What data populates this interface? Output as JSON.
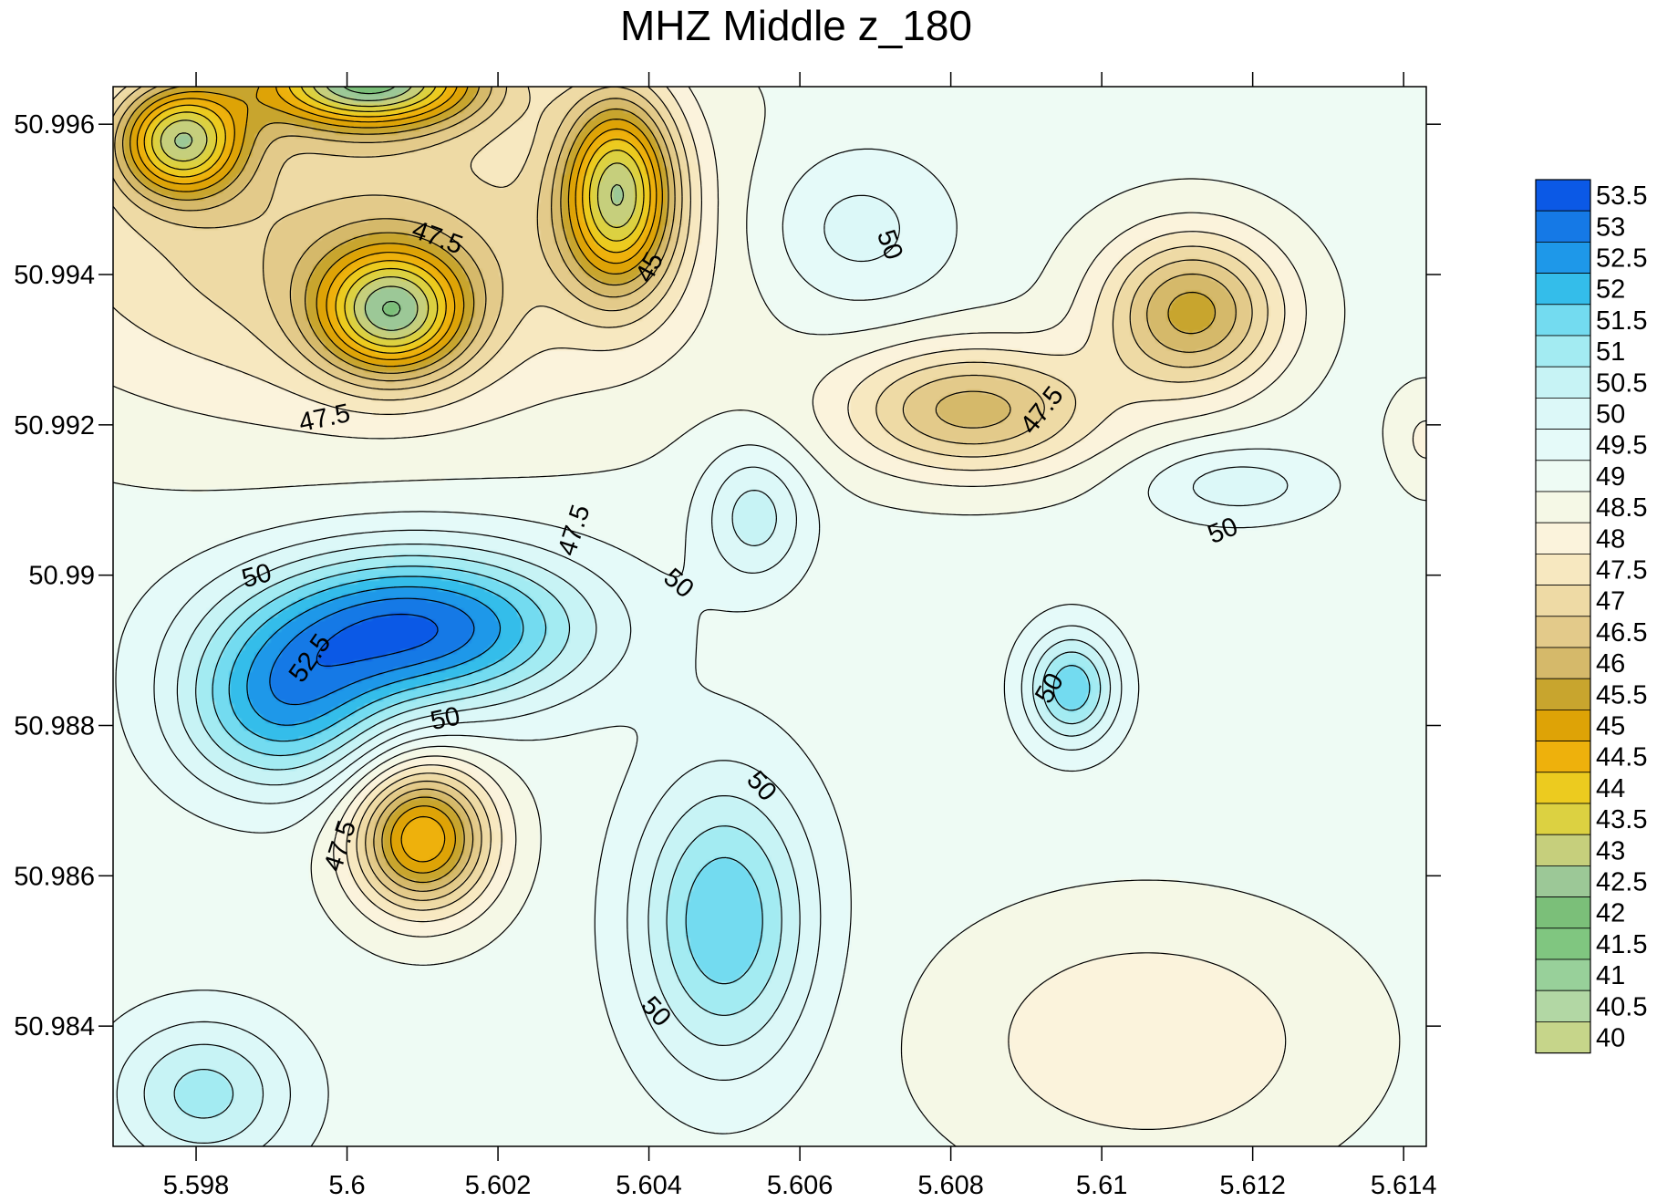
{
  "chart_data": {
    "type": "contour",
    "title": "MHZ Middle z_180",
    "xlabel": "",
    "ylabel": "",
    "xlim": [
      5.5969,
      5.6143
    ],
    "ylim": [
      50.9824,
      50.9965
    ],
    "x_ticks": [
      "5.598",
      "5.6",
      "5.602",
      "5.604",
      "5.606",
      "5.608",
      "5.61",
      "5.612",
      "5.614"
    ],
    "x_tick_values": [
      5.598,
      5.6,
      5.602,
      5.604,
      5.606,
      5.608,
      5.61,
      5.612,
      5.614
    ],
    "y_ticks": [
      "50.984",
      "50.986",
      "50.988",
      "50.99",
      "50.992",
      "50.994",
      "50.996"
    ],
    "y_tick_values": [
      50.984,
      50.986,
      50.988,
      50.99,
      50.992,
      50.994,
      50.996
    ],
    "background_level": 49.2,
    "legend": {
      "placement": "right",
      "levels": [
        "53.5",
        "53",
        "52.5",
        "52",
        "51.5",
        "51",
        "50.5",
        "50",
        "49.5",
        "49",
        "48.5",
        "48",
        "47.5",
        "47",
        "46.5",
        "46",
        "45.5",
        "45",
        "44.5",
        "44",
        "43.5",
        "43",
        "42.5",
        "42",
        "41.5",
        "41",
        "40.5",
        "40"
      ],
      "colors": [
        "#0b59e6",
        "#1579e6",
        "#1e98e9",
        "#34bdea",
        "#73dbf0",
        "#a3ebf2",
        "#c7f3f5",
        "#dcf8f8",
        "#e5faf9",
        "#eefbf4",
        "#f5f8e6",
        "#fbf3dc",
        "#f7e8c0",
        "#eedaa5",
        "#e3ca8a",
        "#d5b96a",
        "#c8a52e",
        "#dea306",
        "#eeb10c",
        "#eccb1f",
        "#dcd141",
        "#c6cf7c",
        "#9cc897",
        "#7bbf79",
        "#80c680",
        "#98d09a",
        "#b2d7a4",
        "#c6d58a"
      ]
    },
    "features": [
      {
        "x": 5.6009,
        "y": 50.9893,
        "peak": 53.5,
        "r": 0.0022,
        "ry": 0.00105
      },
      {
        "x": 5.5991,
        "y": 50.9882,
        "peak": 52.1,
        "r": 0.00135,
        "ry": 0.0011
      },
      {
        "x": 5.605,
        "y": 50.9854,
        "peak": 52.0,
        "r": 0.00115,
        "ry": 0.0019
      },
      {
        "x": 5.6096,
        "y": 50.9885,
        "peak": 51.9,
        "r": 0.0006,
        "ry": 0.00075
      },
      {
        "x": 5.5981,
        "y": 50.9831,
        "peak": 51.2,
        "r": 0.0012,
        "ry": 0.001
      },
      {
        "x": 5.6067,
        "y": 50.9946,
        "peak": 50.4,
        "r": 0.0013,
        "ry": 0.0011
      },
      {
        "x": 5.6054,
        "y": 50.9908,
        "peak": 50.8,
        "r": 0.0007,
        "ry": 0.0009
      },
      {
        "x": 5.6118,
        "y": 50.9912,
        "peak": 50.3,
        "r": 0.0012,
        "ry": 0.0005
      },
      {
        "x": 5.5978,
        "y": 50.9958,
        "peak": 44.2,
        "r": 0.00085,
        "ry": 0.00075
      },
      {
        "x": 5.6003,
        "y": 50.9966,
        "peak": 43.0,
        "r": 0.0015,
        "ry": 0.00065
      },
      {
        "x": 5.6036,
        "y": 50.9951,
        "peak": 44.0,
        "r": 0.00075,
        "ry": 0.0013
      },
      {
        "x": 5.6006,
        "y": 50.9935,
        "peak": 44.3,
        "r": 0.001,
        "ry": 0.00085
      },
      {
        "x": 5.601,
        "y": 50.9865,
        "peak": 44.5,
        "r": 0.0009,
        "ry": 0.00095
      },
      {
        "x": 5.6112,
        "y": 50.9935,
        "peak": 45.8,
        "r": 0.0012,
        "ry": 0.00105
      },
      {
        "x": 5.6083,
        "y": 50.9922,
        "peak": 46.3,
        "r": 0.0017,
        "ry": 0.00085
      },
      {
        "x": 5.6,
        "y": 50.9944,
        "peak": 47.0,
        "r": 0.0045,
        "ry": 0.0023
      },
      {
        "x": 5.6106,
        "y": 50.9838,
        "peak": 48.0,
        "r": 0.0025,
        "ry": 0.0016
      },
      {
        "x": 5.6143,
        "y": 50.9918,
        "peak": 48.4,
        "r": 0.0005,
        "ry": 0.0007
      }
    ],
    "contour_labels": [
      {
        "text": "47.5",
        "x": 5.6012,
        "y": 50.9945,
        "angle": 20
      },
      {
        "text": "45",
        "x": 5.604,
        "y": 50.9941,
        "angle": -62
      },
      {
        "text": "50",
        "x": 5.6072,
        "y": 50.9944,
        "angle": 70
      },
      {
        "text": "47.5",
        "x": 5.5997,
        "y": 50.9921,
        "angle": -12
      },
      {
        "text": "47.5",
        "x": 5.603,
        "y": 50.9906,
        "angle": -72
      },
      {
        "text": "47.5",
        "x": 5.6092,
        "y": 50.9922,
        "angle": -52
      },
      {
        "text": "50",
        "x": 5.6116,
        "y": 50.9906,
        "angle": -22
      },
      {
        "text": "50",
        "x": 5.5988,
        "y": 50.99,
        "angle": -15
      },
      {
        "text": "50",
        "x": 5.6044,
        "y": 50.9899,
        "angle": 40
      },
      {
        "text": "52.5",
        "x": 5.5995,
        "y": 50.9889,
        "angle": -55
      },
      {
        "text": "50",
        "x": 5.6093,
        "y": 50.9885,
        "angle": -60
      },
      {
        "text": "50",
        "x": 5.6013,
        "y": 50.9881,
        "angle": -12
      },
      {
        "text": "50",
        "x": 5.6055,
        "y": 50.9872,
        "angle": 48
      },
      {
        "text": "47.5",
        "x": 5.5999,
        "y": 50.9864,
        "angle": -72
      },
      {
        "text": "50",
        "x": 5.6041,
        "y": 50.9842,
        "angle": 48
      }
    ]
  }
}
